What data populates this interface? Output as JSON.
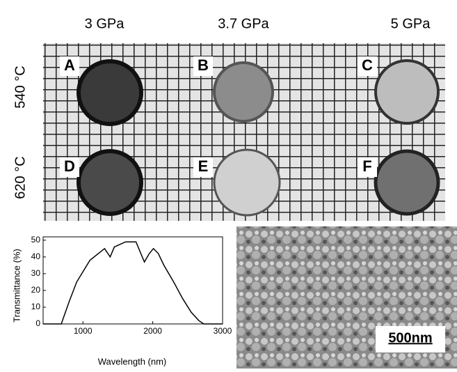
{
  "columns": [
    "3 GPa",
    "3.7 GPa",
    "5 GPa"
  ],
  "rows": [
    "540 °C",
    "620 °C"
  ],
  "panels": [
    "A",
    "B",
    "C",
    "D",
    "E",
    "F"
  ],
  "scale_bar": "500nm",
  "chart_data": {
    "type": "line",
    "xlabel": "Wavelength (nm)",
    "ylabel": "Transmittance (%)",
    "x": [
      430,
      690,
      800,
      910,
      1100,
      1310,
      1390,
      1450,
      1610,
      1760,
      1880,
      1950,
      2010,
      2080,
      2160,
      2300,
      2430,
      2550,
      2660,
      2730,
      3000
    ],
    "values": [
      0,
      0,
      13,
      25,
      38,
      45,
      40,
      46,
      49,
      49,
      37,
      42,
      45,
      42,
      35,
      25,
      15,
      7,
      2,
      0,
      0
    ],
    "color": "#000000",
    "xlim": [
      430,
      3000
    ],
    "xticks": [
      1000,
      2000,
      3000
    ],
    "ylim": [
      0,
      52
    ],
    "yticks": [
      0,
      10,
      20,
      30,
      40,
      50
    ]
  }
}
